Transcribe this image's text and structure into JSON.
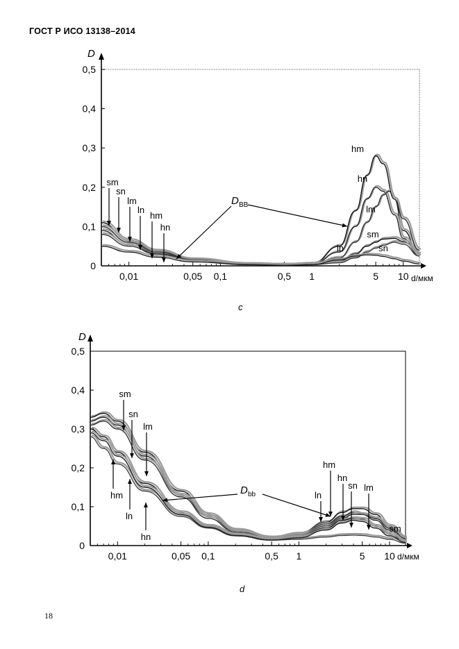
{
  "header": {
    "title": "ГОСТ Р ИСО 13138–2014"
  },
  "page_number": "18",
  "chart_data": [
    {
      "type": "line",
      "caption": "c",
      "ylabel": "D",
      "xlabel": "d/мкм",
      "x_scale": "log",
      "xlim": [
        0.005,
        15
      ],
      "ylim": [
        0,
        0.5
      ],
      "yticks": [
        0,
        0.1,
        0.2,
        0.3,
        0.4,
        0.5
      ],
      "ytick_labels": [
        "0",
        "0,1",
        "0,2",
        "0,3",
        "0,4",
        "0,5"
      ],
      "xticks": [
        0.01,
        0.05,
        0.1,
        0.5,
        1,
        5,
        10
      ],
      "xtick_labels": [
        "0,01",
        "0,05",
        "0,1",
        "0,5",
        "1",
        "5",
        "10"
      ],
      "annotation": {
        "main": "D",
        "sub": "BB"
      },
      "series": [
        {
          "name": "hm",
          "values_x": [
            0.005,
            0.01,
            0.02,
            0.05,
            0.2,
            0.5,
            1,
            2,
            3,
            4,
            5,
            6,
            8,
            10,
            15
          ],
          "values_y": [
            0.1,
            0.06,
            0.035,
            0.015,
            0.004,
            0.002,
            0.005,
            0.05,
            0.14,
            0.23,
            0.28,
            0.26,
            0.17,
            0.09,
            0.03
          ]
        },
        {
          "name": "hn",
          "values_x": [
            0.005,
            0.01,
            0.02,
            0.05,
            0.2,
            0.5,
            1,
            2,
            3,
            4,
            5,
            6,
            8,
            10,
            15
          ],
          "values_y": [
            0.09,
            0.055,
            0.032,
            0.014,
            0.004,
            0.002,
            0.004,
            0.035,
            0.1,
            0.17,
            0.2,
            0.19,
            0.13,
            0.07,
            0.025
          ]
        },
        {
          "name": "lm",
          "values_x": [
            0.005,
            0.01,
            0.02,
            0.05,
            0.2,
            0.5,
            1,
            2,
            3,
            4,
            5,
            6,
            7,
            8,
            10,
            15
          ],
          "values_y": [
            0.08,
            0.05,
            0.03,
            0.013,
            0.003,
            0.002,
            0.003,
            0.02,
            0.06,
            0.11,
            0.15,
            0.18,
            0.19,
            0.17,
            0.12,
            0.04
          ]
        },
        {
          "name": "sm",
          "values_x": [
            0.005,
            0.01,
            0.02,
            0.05,
            0.2,
            0.5,
            1,
            2,
            3,
            4,
            5,
            6,
            8,
            10,
            15
          ],
          "values_y": [
            0.11,
            0.065,
            0.038,
            0.016,
            0.004,
            0.002,
            0.003,
            0.012,
            0.03,
            0.05,
            0.06,
            0.068,
            0.07,
            0.062,
            0.03
          ]
        },
        {
          "name": "sn",
          "values_x": [
            0.005,
            0.01,
            0.02,
            0.05,
            0.2,
            0.5,
            1,
            2,
            3,
            4,
            5,
            6,
            8,
            10,
            15
          ],
          "values_y": [
            0.1,
            0.06,
            0.035,
            0.015,
            0.004,
            0.002,
            0.003,
            0.008,
            0.02,
            0.035,
            0.045,
            0.052,
            0.06,
            0.055,
            0.025
          ]
        },
        {
          "name": "ln",
          "values_x": [
            0.005,
            0.01,
            0.02,
            0.05,
            0.2,
            0.5,
            1,
            2,
            3,
            4,
            5,
            6,
            8,
            10,
            15
          ],
          "values_y": [
            0.05,
            0.035,
            0.022,
            0.01,
            0.003,
            0.001,
            0.003,
            0.015,
            0.025,
            0.028,
            0.027,
            0.024,
            0.018,
            0.012,
            0.005
          ]
        }
      ]
    },
    {
      "type": "line",
      "caption": "d",
      "ylabel": "D",
      "xlabel": "d/мкм",
      "x_scale": "log",
      "xlim": [
        0.005,
        15
      ],
      "ylim": [
        0,
        0.5
      ],
      "yticks": [
        0,
        0.1,
        0.2,
        0.3,
        0.4,
        0.5
      ],
      "ytick_labels": [
        "0",
        "0,1",
        "0,2",
        "0,3",
        "0,4",
        "0,5"
      ],
      "xticks": [
        0.01,
        0.05,
        0.1,
        0.5,
        1,
        5,
        10
      ],
      "xtick_labels": [
        "0,01",
        "0,05",
        "0,1",
        "0,5",
        "1",
        "5",
        "10"
      ],
      "annotation": {
        "main": "D",
        "sub": "bb"
      },
      "series": [
        {
          "name": "sm",
          "values_x": [
            0.005,
            0.007,
            0.01,
            0.02,
            0.05,
            0.1,
            0.2,
            0.5,
            1,
            2,
            3,
            4,
            5,
            7,
            10,
            15
          ],
          "values_y": [
            0.33,
            0.34,
            0.32,
            0.24,
            0.14,
            0.08,
            0.04,
            0.02,
            0.03,
            0.06,
            0.085,
            0.095,
            0.095,
            0.08,
            0.05,
            0.02
          ]
        },
        {
          "name": "sn",
          "values_x": [
            0.005,
            0.007,
            0.01,
            0.02,
            0.05,
            0.1,
            0.2,
            0.5,
            1,
            2,
            3,
            4,
            5,
            7,
            10,
            15
          ],
          "values_y": [
            0.32,
            0.33,
            0.31,
            0.23,
            0.13,
            0.075,
            0.038,
            0.02,
            0.028,
            0.055,
            0.075,
            0.085,
            0.08,
            0.065,
            0.04,
            0.015
          ]
        },
        {
          "name": "lm",
          "values_x": [
            0.005,
            0.007,
            0.01,
            0.02,
            0.05,
            0.1,
            0.2,
            0.5,
            1,
            2,
            3,
            4,
            5,
            7,
            10,
            15
          ],
          "values_y": [
            0.31,
            0.32,
            0.3,
            0.22,
            0.125,
            0.07,
            0.035,
            0.018,
            0.026,
            0.05,
            0.07,
            0.08,
            0.08,
            0.07,
            0.045,
            0.018
          ]
        },
        {
          "name": "hm",
          "values_x": [
            0.005,
            0.007,
            0.01,
            0.02,
            0.05,
            0.1,
            0.2,
            0.5,
            1,
            2,
            3,
            4,
            5,
            7,
            10,
            15
          ],
          "values_y": [
            0.3,
            0.28,
            0.24,
            0.16,
            0.085,
            0.05,
            0.028,
            0.015,
            0.022,
            0.045,
            0.065,
            0.07,
            0.068,
            0.05,
            0.03,
            0.01
          ]
        },
        {
          "name": "ln",
          "values_x": [
            0.005,
            0.007,
            0.01,
            0.02,
            0.05,
            0.1,
            0.2,
            0.5,
            1,
            2,
            3,
            4,
            5,
            7,
            10,
            15
          ],
          "values_y": [
            0.28,
            0.25,
            0.21,
            0.14,
            0.075,
            0.045,
            0.025,
            0.014,
            0.016,
            0.022,
            0.026,
            0.027,
            0.026,
            0.022,
            0.016,
            0.006
          ]
        },
        {
          "name": "hn",
          "values_x": [
            0.005,
            0.007,
            0.01,
            0.02,
            0.05,
            0.1,
            0.2,
            0.5,
            1,
            2,
            3,
            4,
            5,
            7,
            10,
            15
          ],
          "values_y": [
            0.29,
            0.27,
            0.23,
            0.15,
            0.08,
            0.047,
            0.026,
            0.014,
            0.02,
            0.04,
            0.058,
            0.065,
            0.062,
            0.045,
            0.025,
            0.008
          ]
        }
      ]
    }
  ]
}
